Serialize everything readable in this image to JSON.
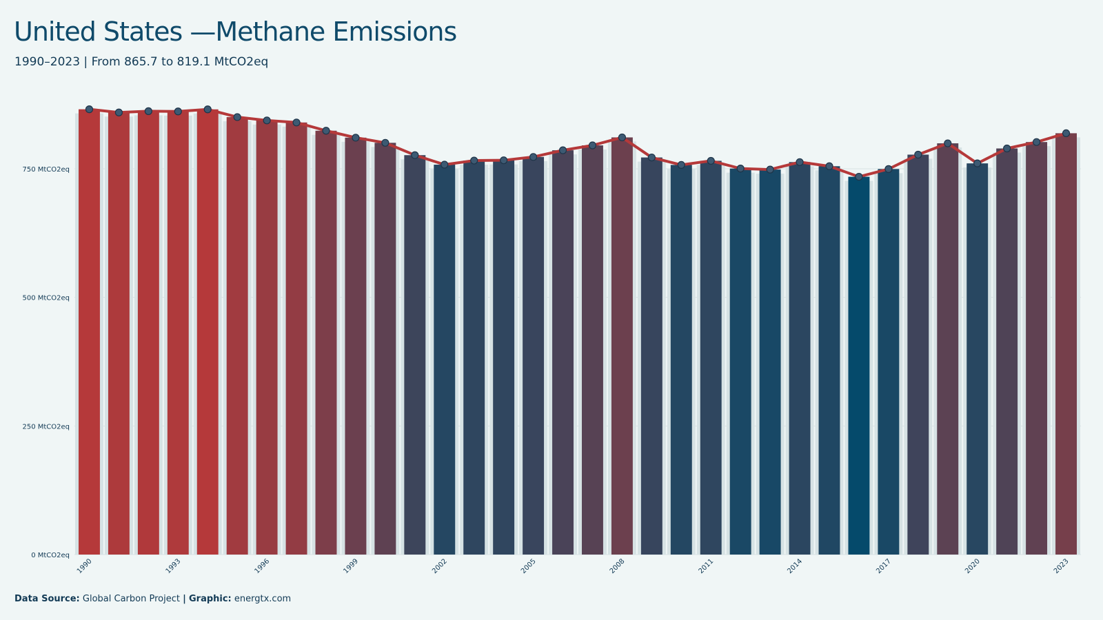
{
  "header": {
    "title": "United States —Methane Emissions",
    "subtitle": "1990–2023 | From 865.7 to 819.1 MtCO2eq"
  },
  "caption": {
    "source_label": "Data Source:",
    "source_value": "Global Carbon Project",
    "separator": "|",
    "graphic_label": "Graphic:",
    "graphic_value": "energtx.com"
  },
  "colors": {
    "high": "#b5393a",
    "low": "#054a6b",
    "line": "#b5393a",
    "marker_fill": "#3d5a73",
    "marker_stroke": "#1e3448",
    "grid": "#d9e1e4",
    "bar_background": "#d6e2e4",
    "text": "#123a55"
  },
  "chart_data": {
    "type": "bar",
    "overlay": "line",
    "categories": [
      1990,
      1991,
      1992,
      1993,
      1994,
      1995,
      1996,
      1997,
      1998,
      1999,
      2000,
      2001,
      2002,
      2003,
      2004,
      2005,
      2006,
      2007,
      2008,
      2009,
      2010,
      2011,
      2012,
      2013,
      2014,
      2015,
      2016,
      2017,
      2018,
      2019,
      2020,
      2021,
      2022,
      2023
    ],
    "values": [
      865.7,
      859.5,
      862.0,
      861.5,
      865.5,
      850.5,
      844.0,
      840.0,
      824.0,
      810.5,
      800.5,
      776.5,
      758.0,
      766.0,
      766.5,
      773.0,
      786.0,
      795.5,
      811.0,
      772.0,
      757.5,
      765.5,
      750.5,
      748.5,
      763.0,
      755.0,
      734.5,
      749.5,
      777.5,
      799.5,
      760.5,
      789.5,
      802.0,
      819.1
    ],
    "x_tick_labels": [
      "1990",
      "1993",
      "1996",
      "1999",
      "2002",
      "2005",
      "2008",
      "2011",
      "2014",
      "2017",
      "2020",
      "2023"
    ],
    "y_ticks": [
      0,
      250,
      500,
      750
    ],
    "y_tick_labels": [
      "0 MtCO2eq",
      "250 MtCO2eq",
      "500 MtCO2eq",
      "750 MtCO2eq"
    ],
    "ylim": [
      0,
      900
    ],
    "grid": true,
    "legend": "none"
  }
}
